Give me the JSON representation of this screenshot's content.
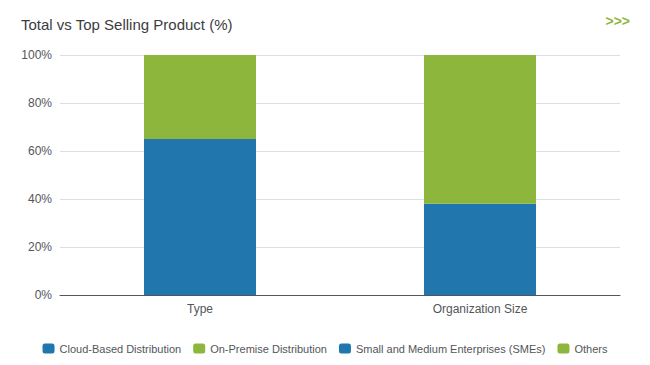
{
  "chart_data": {
    "type": "bar",
    "title": "Total vs Top Selling Product (%)",
    "annotations": [
      {
        "text": ">>>",
        "color": "#8db63c"
      }
    ],
    "categories": [
      "Type",
      "Organization Size"
    ],
    "series": [
      {
        "name": "Cloud-Based Distribution",
        "color": "#2176ae",
        "values": [
          65,
          null
        ]
      },
      {
        "name": "On-Premise Distribution",
        "color": "#8db63c",
        "values": [
          35,
          null
        ]
      },
      {
        "name": "Small and Medium Enterprises (SMEs)",
        "color": "#2176ae",
        "values": [
          null,
          38
        ]
      },
      {
        "name": "Others",
        "color": "#8db63c",
        "values": [
          null,
          62
        ]
      }
    ],
    "stacked": true,
    "ylim": [
      0,
      100
    ],
    "yticks": [
      {
        "value": 0,
        "label": "0%"
      },
      {
        "value": 20,
        "label": "20%"
      },
      {
        "value": 40,
        "label": "40%"
      },
      {
        "value": 60,
        "label": "60%"
      },
      {
        "value": 80,
        "label": "80%"
      },
      {
        "value": 100,
        "label": "100%"
      }
    ],
    "grid": true,
    "legend": "bottom"
  }
}
